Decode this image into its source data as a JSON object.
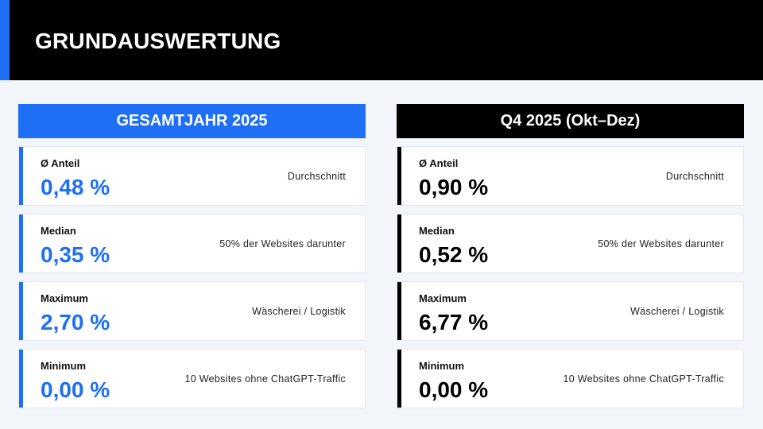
{
  "title": "GRUNDAUSWERTUNG",
  "colors": {
    "accent": "#1f6ff5",
    "dark": "#000000",
    "background": "#f2f5fa"
  },
  "columns": [
    {
      "header": "GESAMTJAHR 2025",
      "cards": [
        {
          "label": "Ø Anteil",
          "value": "0,48 %",
          "note": "Durchschnitt"
        },
        {
          "label": "Median",
          "value": "0,35 %",
          "note": "50% der Websites darunter"
        },
        {
          "label": "Maximum",
          "value": "2,70 %",
          "note": "Wäscherei / Logistik"
        },
        {
          "label": "Minimum",
          "value": "0,00 %",
          "note": "10 Websites ohne ChatGPT-Traffic"
        }
      ]
    },
    {
      "header": "Q4 2025 (Okt–Dez)",
      "cards": [
        {
          "label": "Ø Anteil",
          "value": "0,90 %",
          "note": "Durchschnitt"
        },
        {
          "label": "Median",
          "value": "0,52 %",
          "note": "50% der Websites darunter"
        },
        {
          "label": "Maximum",
          "value": "6,77 %",
          "note": "Wäscherei / Logistik"
        },
        {
          "label": "Minimum",
          "value": "0,00 %",
          "note": "10 Websites ohne ChatGPT-Traffic"
        }
      ]
    }
  ]
}
